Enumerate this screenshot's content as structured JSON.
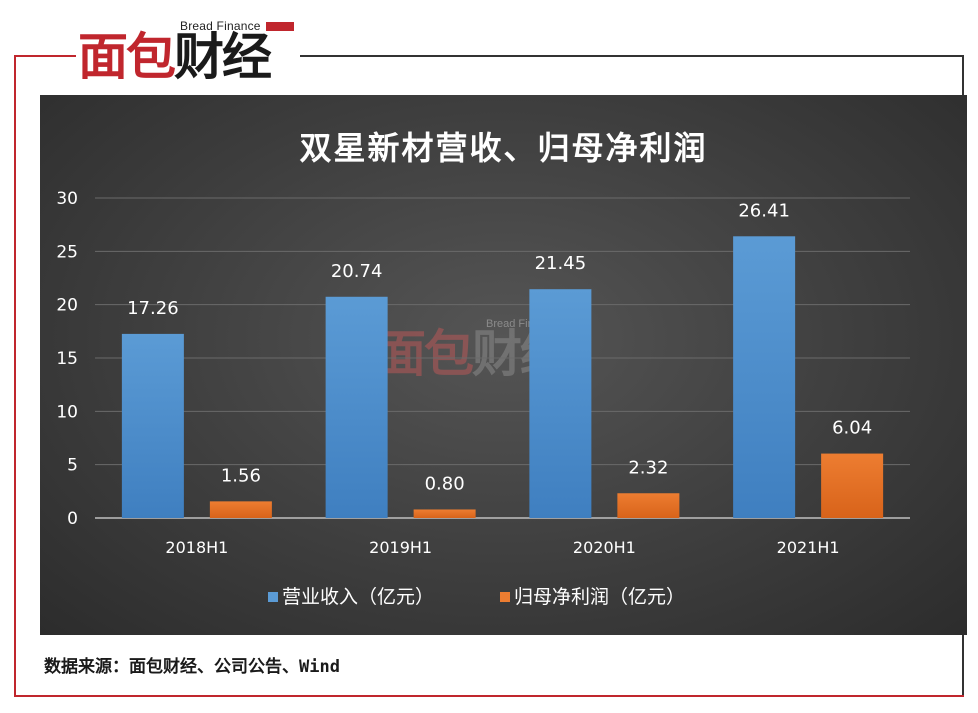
{
  "brand": {
    "en": "Bread Finance",
    "cn_red": "面包",
    "cn_dark": "财经"
  },
  "watermark": {
    "en": "Bread Finance",
    "cn_red": "面包",
    "cn_dark": "财经"
  },
  "source_note": "数据来源：面包财经、公司公告、Wind",
  "colors": {
    "revenue": "#5b9bd5",
    "profit": "#ed7d31",
    "brand_red": "#c0262d"
  },
  "chart_data": {
    "type": "bar",
    "title": "双星新材营收、归母净利润",
    "categories": [
      "2018H1",
      "2019H1",
      "2020H1",
      "2021H1"
    ],
    "series": [
      {
        "name": "营业收入（亿元）",
        "values": [
          17.26,
          20.74,
          21.45,
          26.41
        ],
        "labels": [
          "17.26",
          "20.74",
          "21.45",
          "26.41"
        ]
      },
      {
        "name": "归母净利润（亿元）",
        "values": [
          1.56,
          0.8,
          2.32,
          6.04
        ],
        "labels": [
          "1.56",
          "0.80",
          "2.32",
          "6.04"
        ]
      }
    ],
    "ylim": [
      0,
      30
    ],
    "yticks": [
      0,
      5,
      10,
      15,
      20,
      25,
      30
    ],
    "grid": true,
    "legend": "bottom"
  }
}
